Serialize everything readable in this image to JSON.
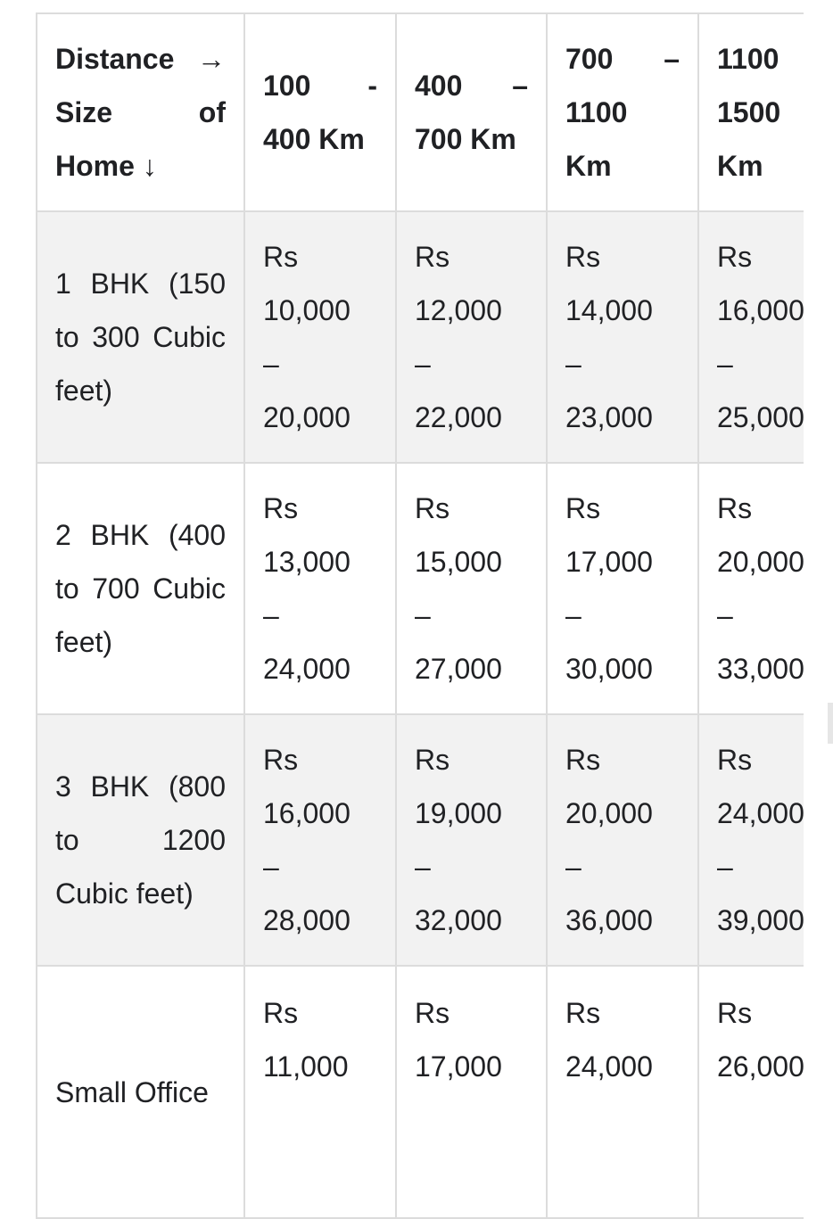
{
  "table": {
    "headers": [
      "Distance → Size of Home ↓",
      "100 - 400 Km",
      "400 – 700 Km",
      "700 – 1100 Km",
      "1100 1500 Km"
    ],
    "rows": [
      {
        "size": "1 BHK (150 to 300 Cubic feet)",
        "prices": [
          "Rs 10,000 – 20,000",
          "Rs 12,000 – 22,000",
          "Rs 14,000 – 23,000",
          "Rs 16,000 – 25,000"
        ]
      },
      {
        "size": "2 BHK (400 to 700 Cubic feet)",
        "prices": [
          "Rs 13,000 – 24,000",
          "Rs 15,000 – 27,000",
          "Rs 17,000 – 30,000",
          "Rs 20,000 – 33,000"
        ]
      },
      {
        "size": "3 BHK (800 to 1200 Cubic feet)",
        "prices": [
          "Rs 16,000 – 28,000",
          "Rs 19,000 – 32,000",
          "Rs 20,000 – 36,000",
          "Rs 24,000 – 39,000"
        ]
      },
      {
        "size": "Small Office",
        "prices": [
          "Rs 11,000",
          "Rs 17,000",
          "Rs 24,000",
          "Rs 26,000"
        ]
      }
    ]
  },
  "colors": {
    "border": "#dcdcdc",
    "stripe": "#f2f2f2",
    "text": "#202124"
  }
}
